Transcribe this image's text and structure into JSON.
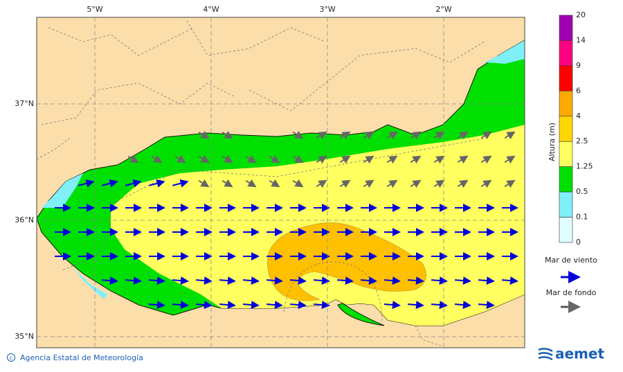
{
  "map": {
    "lon_labels": [
      "5°W",
      "4°W",
      "3°W",
      "2°W"
    ],
    "lat_labels": [
      "37°N",
      "36°N",
      "35°N"
    ],
    "colorbar": {
      "title": "Altura (m)",
      "levels": [
        20,
        14,
        9,
        6,
        4,
        2.5,
        1.25,
        0.5,
        0.1,
        0
      ],
      "colors": [
        "#a000b0",
        "#ff0080",
        "#ff0000",
        "#ffaa00",
        "#ffd700",
        "#ffff60",
        "#00e000",
        "#80f0f8",
        "#e0ffff"
      ]
    },
    "legend": {
      "wind_sea": "Mar de viento",
      "swell": "Mar de fondo"
    },
    "footer": {
      "credit": "Agencia Estatal de Meteorología",
      "logo": "aemet"
    }
  }
}
